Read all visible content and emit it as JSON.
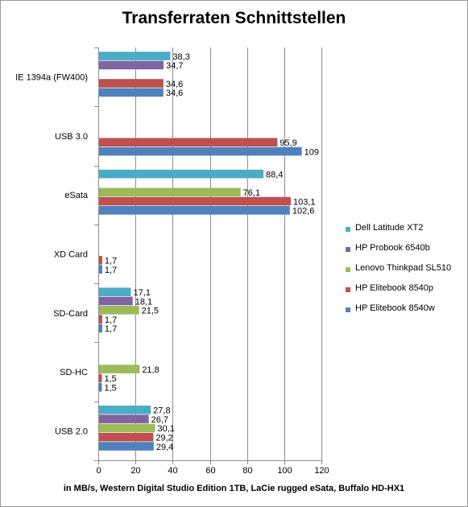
{
  "chart_data": {
    "type": "bar",
    "orientation": "horizontal",
    "title": "Transferraten Schnittstellen",
    "xlabel": "in MB/s, Western Digital Studio Edition 1TB, LaCie rugged eSata, Buffalo HD-HX1",
    "ylabel": "",
    "xlim": [
      0,
      120
    ],
    "x_ticks": [
      "0",
      "20",
      "40",
      "60",
      "80",
      "100",
      "120"
    ],
    "grid": "vertical major gridlines",
    "legend_position": "right",
    "categories": [
      "IE 1394a (FW400)",
      "USB 3.0",
      "eSata",
      "XD Card",
      "SD-Card",
      "SD-HC",
      "USB 2.0"
    ],
    "series": [
      {
        "name": "Dell Latitude XT2",
        "color": "#4bacc6",
        "values": [
          38.3,
          null,
          88.4,
          null,
          17.1,
          null,
          27.8
        ],
        "labels": [
          "38,3",
          "",
          "88,4",
          "",
          "17,1",
          "",
          "27,8"
        ]
      },
      {
        "name": "HP Probook 6540b",
        "color": "#8064a2",
        "values": [
          34.7,
          null,
          null,
          null,
          18.1,
          null,
          26.7
        ],
        "labels": [
          "34,7",
          "",
          "",
          "",
          "18,1",
          "",
          "26,7"
        ]
      },
      {
        "name": "Lenovo Thinkpad SL510",
        "color": "#9bbb59",
        "values": [
          null,
          null,
          76.1,
          null,
          21.5,
          21.8,
          30.1
        ],
        "labels": [
          "",
          "",
          "76,1",
          "",
          "21,5",
          "21,8",
          "30,1"
        ]
      },
      {
        "name": "HP Elitebook 8540p",
        "color": "#c0504d",
        "values": [
          34.6,
          95.9,
          103.1,
          1.7,
          1.7,
          1.5,
          29.2
        ],
        "labels": [
          "34,6",
          "95,9",
          "103,1",
          "1,7",
          "1,7",
          "1,5",
          "29,2"
        ]
      },
      {
        "name": "HP Elitebook 8540w",
        "color": "#4f81bd",
        "values": [
          34.6,
          109,
          102.6,
          1.7,
          1.7,
          1.5,
          29.4
        ],
        "labels": [
          "34,6",
          "109",
          "102,6",
          "1,7",
          "1,7",
          "1,5",
          "29,4"
        ]
      }
    ]
  }
}
